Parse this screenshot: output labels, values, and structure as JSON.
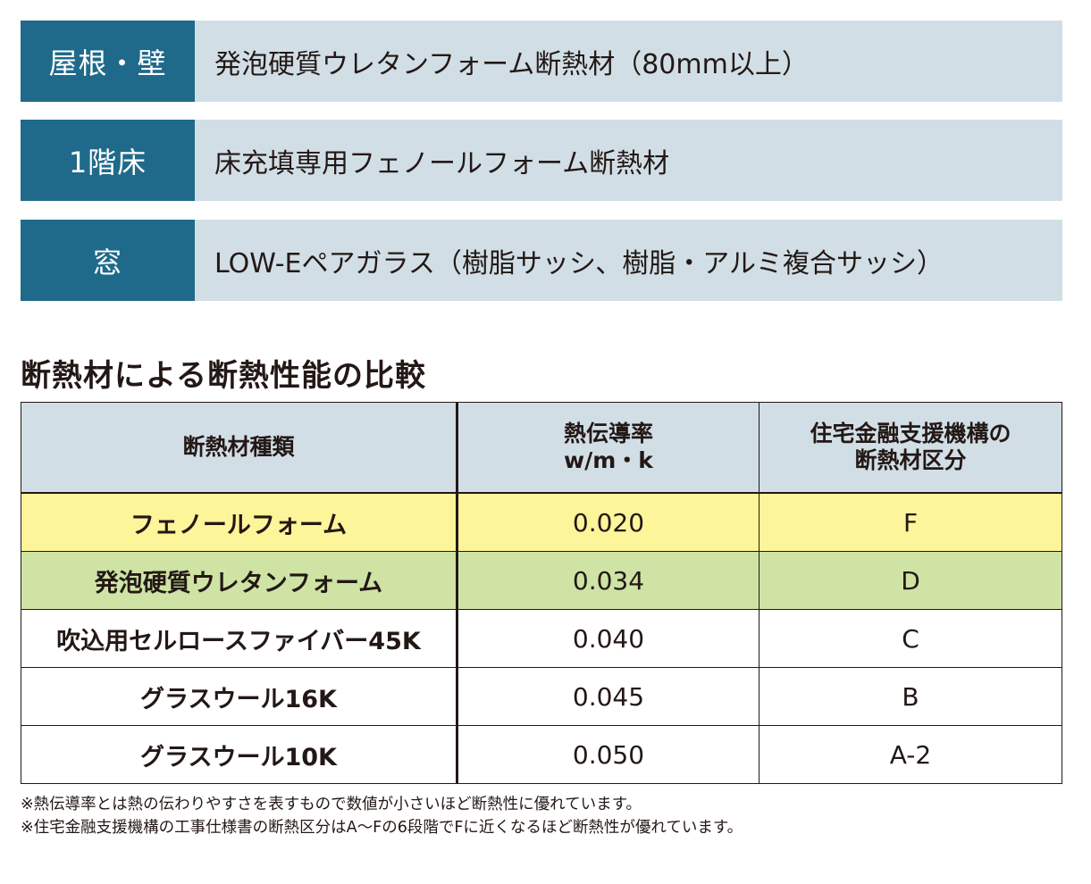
{
  "spec": [
    {
      "label": "屋根・壁",
      "value": "発泡硬質ウレタンフォーム断熱材（80mm以上）"
    },
    {
      "label": "1階床",
      "value": "床充填専用フェノールフォーム断熱材"
    },
    {
      "label": "窓",
      "value": "LOW-Eペアガラス（樹脂サッシ、樹脂・アルミ複合サッシ）"
    }
  ],
  "comparison": {
    "title": "断熱材による断熱性能の比較",
    "headers": {
      "type": "断熱材種類",
      "conductivity_line1": "熱伝導率",
      "conductivity_line2": "w/m・k",
      "class_line1": "住宅金融支援機構の",
      "class_line2": "断熱材区分"
    },
    "rows": [
      {
        "material": "フェノールフォーム",
        "conductivity": "0.020",
        "class": "F",
        "highlight": "#fdf59a"
      },
      {
        "material": "発泡硬質ウレタンフォーム",
        "conductivity": "0.034",
        "class": "D",
        "highlight": "#cee3a4"
      },
      {
        "material": "吹込用セルロースファイバー45K",
        "conductivity": "0.040",
        "class": "C"
      },
      {
        "material": "グラスウール16K",
        "conductivity": "0.045",
        "class": "B"
      },
      {
        "material": "グラスウール10K",
        "conductivity": "0.050",
        "class": "A-2"
      }
    ]
  },
  "notes": [
    "※熱伝導率とは熱の伝わりやすさを表すもので数値が小さいほど断熱性に優れています。",
    "※住宅金融支援機構の工事仕様書の断熱区分はA〜Fの6段階でFに近くなるほど断熱性が優れています。"
  ],
  "colors": {
    "label_bg": "#1f6a8a",
    "value_bg": "#d1dee6"
  }
}
